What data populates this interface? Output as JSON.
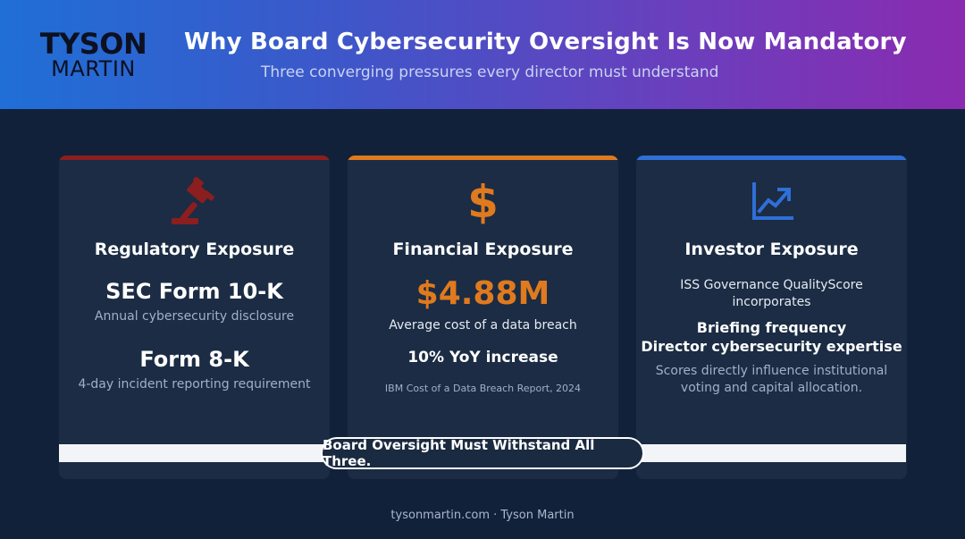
{
  "logo": {
    "line1": "TYSON",
    "line2": "MARTIN"
  },
  "header": {
    "title": "Why Board Cybersecurity Oversight Is Now Mandatory",
    "subtitle": "Three converging pressures every director must understand"
  },
  "colors": {
    "regulatory": "#8b1e1e",
    "financial": "#e07a1e",
    "investor": "#2f6fd6"
  },
  "cards": [
    {
      "icon": "gavel-icon",
      "heading": "Regulatory Exposure",
      "item1_title": "SEC Form 10-K",
      "item1_desc": "Annual cybersecurity disclosure",
      "item2_title": "Form 8-K",
      "item2_desc": "4-day incident reporting requirement"
    },
    {
      "icon": "dollar-icon",
      "icon_glyph": "$",
      "heading": "Financial Exposure",
      "stat": "$4.88M",
      "stat_desc": "Average cost of a data breach",
      "increase": "10% YoY increase",
      "source": "IBM Cost of a Data Breach Report, 2024"
    },
    {
      "icon": "trending-up-chart-icon",
      "heading": "Investor Exposure",
      "intro_line1": "ISS Governance QualityScore",
      "intro_line2": "incorporates",
      "factor1": "Briefing frequency",
      "factor2": "Director cybersecurity expertise",
      "note_line1": "Scores directly influence institutional",
      "note_line2": "voting and capital allocation."
    }
  ],
  "banner": "Board Oversight Must Withstand All Three.",
  "footer": "tysonmartin.com · Tyson Martin"
}
